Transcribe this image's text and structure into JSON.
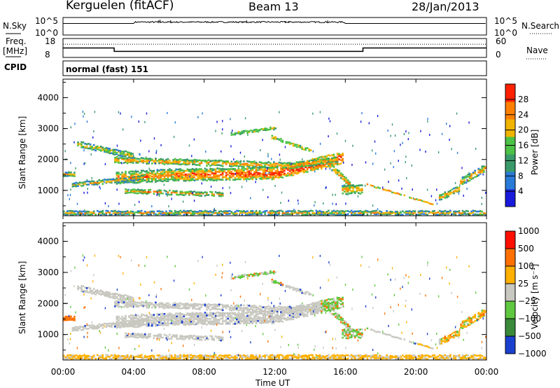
{
  "header": {
    "station": "Kerguelen (fitACF)",
    "beam": "Beam 13",
    "date": "28/Jan/2013"
  },
  "top_panels": {
    "nsky_label": "N.Sky",
    "nsearch_label": "N.Search",
    "count_ticks": [
      "10^5",
      "10^0"
    ],
    "freq_label_1": "Freq.",
    "freq_label_2": "[MHz]",
    "freq_ticks": [
      "18",
      "8"
    ],
    "nave_label": "Nave",
    "nave_ticks": [
      "60",
      "0"
    ],
    "cpid_label": "CPID",
    "cpid_value": "normal (fast) 151"
  },
  "chart_data": [
    {
      "type": "heatmap",
      "name": "power",
      "ylabel": "Slant Range [km]",
      "ylim": [
        180,
        4600
      ],
      "yticks": [
        "1000",
        "2000",
        "3000",
        "4000"
      ],
      "colorbar_label": "Power [dB]",
      "colorbar_ticks": [
        "4",
        "8",
        "12",
        "16",
        "20",
        "24",
        "28"
      ],
      "colorbar_range": [
        0,
        32
      ],
      "colorbar_colors": [
        "#1a1adc",
        "#2a7ad8",
        "#3a9a6a",
        "#4cc246",
        "#f0b400",
        "#ff8000",
        "#ff2000"
      ]
    },
    {
      "type": "heatmap",
      "name": "velocity",
      "ylabel": "Slant Range [km]",
      "ylim": [
        180,
        4600
      ],
      "yticks": [
        "1000",
        "2000",
        "3000",
        "4000"
      ],
      "colorbar_label": "Velocity [m s⁻¹]",
      "colorbar_ticks": [
        "1000",
        "500",
        "100",
        "25",
        "−25",
        "−100",
        "−500",
        "−1000"
      ],
      "colorbar_colors": [
        "#1a40d0",
        "#3a8a3a",
        "#60c840",
        "#c8c8c0",
        "#ffb000",
        "#ff7000",
        "#ff1000"
      ]
    }
  ],
  "time_axis": {
    "xlabel": "Time UT",
    "ticks": [
      "00:00",
      "04:00",
      "08:00",
      "12:00",
      "16:00",
      "20:00",
      "00:00"
    ],
    "xlim_hours": [
      0,
      24
    ]
  },
  "frequency_series": {
    "hours": [
      0,
      2.9,
      2.9,
      17,
      17,
      24
    ],
    "mhz": [
      13.0,
      13.0,
      11.2,
      11.2,
      13.0,
      13.0
    ]
  },
  "nave_series": {
    "hours": [
      0,
      24
    ],
    "value": [
      42,
      42
    ]
  }
}
